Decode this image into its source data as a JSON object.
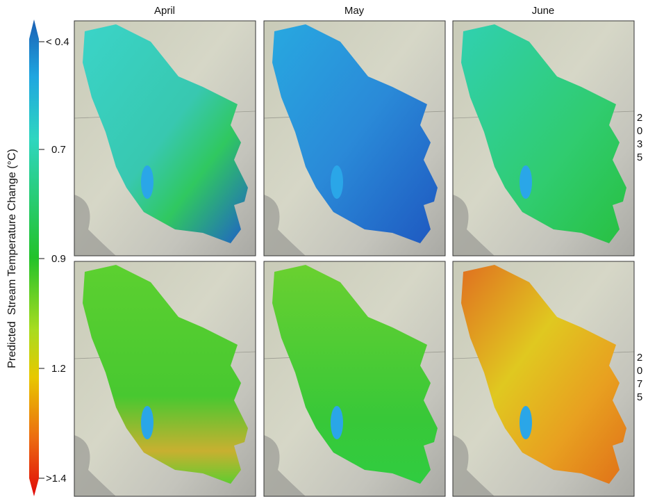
{
  "columns": [
    "April",
    "May",
    "June"
  ],
  "rows": [
    "2035",
    "2075"
  ],
  "colorbar": {
    "label": "Predicted  Stream Temperature Change (°C)",
    "ticks": [
      "< 0.4",
      "0.7",
      "0.9",
      "1.2",
      ">1.4"
    ]
  }
}
